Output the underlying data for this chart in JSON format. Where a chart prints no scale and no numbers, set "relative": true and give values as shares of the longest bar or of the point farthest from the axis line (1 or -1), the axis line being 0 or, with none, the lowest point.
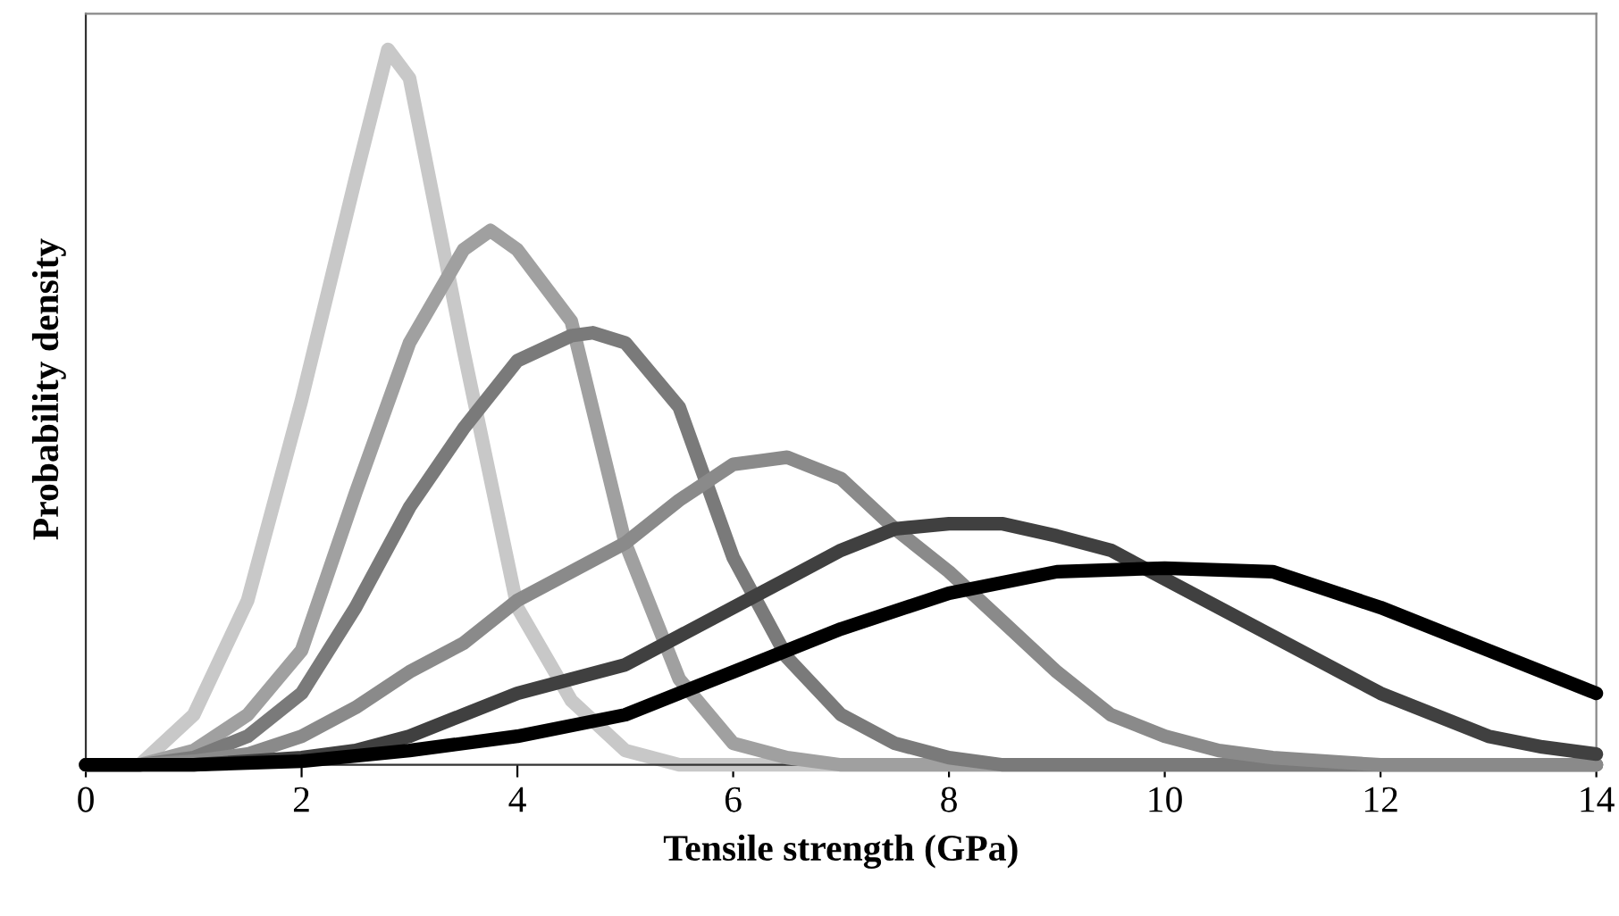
{
  "chart_data": {
    "type": "line",
    "xlabel": "Tensile strength (GPa)",
    "ylabel": "Probability density",
    "relative": true,
    "xlim": [
      0,
      14
    ],
    "xticks": [
      0,
      2,
      4,
      6,
      8,
      10,
      12,
      14
    ],
    "grid": false,
    "legend": false,
    "marker": "none",
    "line_style": "solid",
    "series": [
      {
        "color": "#c8c8c8",
        "x": [
          0,
          0.5,
          1,
          1.5,
          2,
          2.5,
          2.8,
          3,
          3.5,
          4,
          4.5,
          5,
          5.5,
          6,
          8,
          10,
          12,
          14
        ],
        "values": [
          0,
          0,
          0.07,
          0.23,
          0.51,
          0.82,
          1,
          0.96,
          0.58,
          0.22,
          0.09,
          0.02,
          0,
          0,
          0,
          0,
          0,
          0
        ]
      },
      {
        "color": "#a0a0a0",
        "x": [
          0,
          0.5,
          1,
          1.5,
          2,
          2.5,
          3,
          3.5,
          3.75,
          4,
          4.5,
          5,
          5.5,
          6,
          6.5,
          7,
          10,
          14
        ],
        "values": [
          0,
          0,
          0.02,
          0.07,
          0.16,
          0.38,
          0.59,
          0.72,
          0.747,
          0.72,
          0.62,
          0.31,
          0.12,
          0.03,
          0.01,
          0,
          0,
          0
        ]
      },
      {
        "color": "#7a7a7a",
        "x": [
          0,
          0.5,
          1,
          1.5,
          2,
          2.5,
          3,
          3.5,
          4,
          4.5,
          4.7,
          5,
          5.5,
          6,
          6.5,
          7,
          7.5,
          8,
          8.5,
          10,
          14
        ],
        "values": [
          0,
          0,
          0.01,
          0.04,
          0.1,
          0.22,
          0.36,
          0.47,
          0.565,
          0.6,
          0.604,
          0.59,
          0.5,
          0.29,
          0.15,
          0.07,
          0.03,
          0.01,
          0,
          0,
          0
        ]
      },
      {
        "color": "#8a8a8a",
        "x": [
          0,
          0.5,
          1,
          1.5,
          2,
          2.5,
          3,
          3.5,
          4,
          5,
          5.5,
          6,
          6.5,
          7,
          7.5,
          8,
          8.5,
          9,
          9.5,
          10,
          10.5,
          11,
          12,
          14
        ],
        "values": [
          0,
          0,
          0.005,
          0.015,
          0.04,
          0.08,
          0.13,
          0.17,
          0.23,
          0.31,
          0.37,
          0.42,
          0.43,
          0.4,
          0.33,
          0.27,
          0.2,
          0.13,
          0.07,
          0.04,
          0.02,
          0.01,
          0,
          0
        ]
      },
      {
        "color": "#404040",
        "x": [
          0,
          1,
          2,
          2.5,
          3,
          3.5,
          4,
          4.5,
          5,
          5.5,
          6,
          6.5,
          7,
          7.5,
          8,
          8.5,
          9,
          9.5,
          10,
          10.5,
          11,
          11.5,
          12,
          12.5,
          13,
          13.5,
          14
        ],
        "values": [
          0,
          0,
          0.01,
          0.02,
          0.04,
          0.07,
          0.1,
          0.12,
          0.14,
          0.18,
          0.22,
          0.26,
          0.3,
          0.33,
          0.337,
          0.337,
          0.32,
          0.3,
          0.26,
          0.22,
          0.18,
          0.14,
          0.1,
          0.07,
          0.04,
          0.025,
          0.015
        ]
      },
      {
        "color": "#000000",
        "x": [
          0,
          1,
          2,
          3,
          4,
          5,
          6,
          7,
          8,
          9,
          10,
          11,
          12,
          13,
          14
        ],
        "values": [
          0,
          0,
          0.005,
          0.02,
          0.04,
          0.07,
          0.13,
          0.19,
          0.24,
          0.27,
          0.275,
          0.27,
          0.22,
          0.16,
          0.1
        ]
      }
    ]
  }
}
